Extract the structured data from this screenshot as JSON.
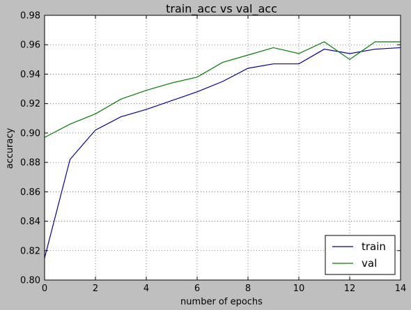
{
  "chart_data": {
    "type": "line",
    "title": "train_acc vs val_acc",
    "xlabel": "number of epochs",
    "ylabel": "accuracy",
    "xlim": [
      0,
      14
    ],
    "ylim": [
      0.8,
      0.98
    ],
    "x_ticks": [
      0,
      2,
      4,
      6,
      8,
      10,
      12,
      14
    ],
    "x_tick_labels": [
      "0",
      "2",
      "4",
      "6",
      "8",
      "10",
      "12",
      "14"
    ],
    "y_ticks": [
      0.8,
      0.82,
      0.84,
      0.86,
      0.88,
      0.9,
      0.92,
      0.94,
      0.96,
      0.98
    ],
    "y_tick_labels": [
      "0.80",
      "0.82",
      "0.84",
      "0.86",
      "0.88",
      "0.90",
      "0.92",
      "0.94",
      "0.96",
      "0.98"
    ],
    "grid": true,
    "legend_position": "bottom-right",
    "x": [
      0,
      1,
      2,
      3,
      4,
      5,
      6,
      7,
      8,
      9,
      10,
      11,
      12,
      13,
      14
    ],
    "series": [
      {
        "name": "train",
        "color": "#0000aa",
        "values": [
          0.815,
          0.882,
          0.902,
          0.911,
          0.916,
          0.922,
          0.928,
          0.935,
          0.944,
          0.947,
          0.947,
          0.957,
          0.954,
          0.957,
          0.958
        ]
      },
      {
        "name": "val",
        "color": "#007f00",
        "values": [
          0.897,
          0.906,
          0.913,
          0.923,
          0.929,
          0.934,
          0.938,
          0.948,
          0.953,
          0.958,
          0.954,
          0.962,
          0.95,
          0.962,
          0.962
        ]
      }
    ]
  }
}
